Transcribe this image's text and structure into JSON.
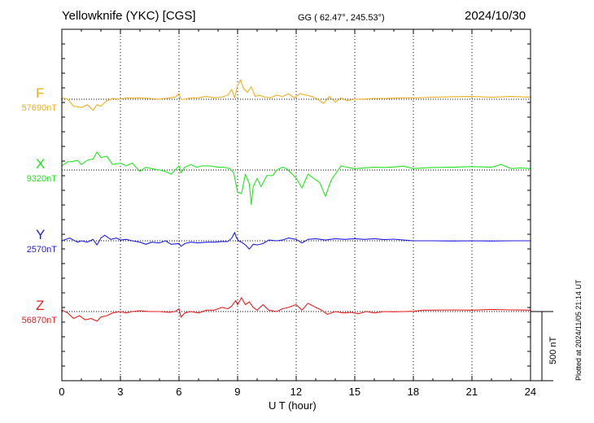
{
  "header": {
    "station": "Yellowknife (YKC)  [CGS]",
    "coords": "GG ( 62.47°, 245.53°)",
    "date": "2024/10/30"
  },
  "footer": {
    "plotted": "Plotted at 2024/11/05 21:14 UT"
  },
  "chart_data": {
    "type": "line",
    "xlabel": "U T (hour)",
    "xlim": [
      0,
      24
    ],
    "xticks": [
      0,
      3,
      6,
      9,
      12,
      15,
      18,
      21,
      24
    ],
    "grid": "dotted vertical every 3 hours; dotted baseline per channel",
    "scale_bar": {
      "label": "500 nT",
      "value_nT": 500
    },
    "series": [
      {
        "name": "F",
        "baseline_label": "57690nT",
        "baseline_nT": 57690,
        "color": "#f0ad1e",
        "x": [
          0,
          0.3,
          0.6,
          1,
          1.3,
          1.6,
          1.8,
          2,
          2.3,
          2.6,
          3,
          3.3,
          3.6,
          4,
          4.5,
          5,
          5.5,
          5.8,
          6,
          6.1,
          6.3,
          6.6,
          7,
          7.4,
          7.8,
          8.2,
          8.5,
          8.7,
          8.85,
          9,
          9.15,
          9.3,
          9.5,
          9.7,
          9.9,
          10.1,
          10.4,
          10.7,
          11,
          11.3,
          11.6,
          11.9,
          12.2,
          12.5,
          12.8,
          13.1,
          13.4,
          13.7,
          14,
          14.3,
          14.6,
          15,
          15.5,
          16,
          16.5,
          17,
          17.5,
          18,
          18.5,
          19,
          20,
          21,
          22,
          23,
          24
        ],
        "y": [
          57700,
          57690,
          57640,
          57630,
          57650,
          57610,
          57650,
          57640,
          57680,
          57695,
          57690,
          57700,
          57698,
          57700,
          57696,
          57690,
          57700,
          57705,
          57730,
          57690,
          57690,
          57700,
          57700,
          57710,
          57700,
          57705,
          57720,
          57760,
          57700,
          57790,
          57830,
          57770,
          57740,
          57780,
          57710,
          57720,
          57705,
          57700,
          57720,
          57710,
          57730,
          57700,
          57730,
          57720,
          57710,
          57690,
          57660,
          57710,
          57670,
          57700,
          57680,
          57690,
          57692,
          57696,
          57695,
          57698,
          57700,
          57700,
          57702,
          57705,
          57708,
          57710,
          57705,
          57710,
          57705
        ]
      },
      {
        "name": "X",
        "baseline_label": "9320nT",
        "baseline_nT": 9320,
        "color": "#22e622",
        "x": [
          0,
          0.3,
          0.5,
          0.8,
          1,
          1.3,
          1.6,
          1.8,
          2,
          2.3,
          2.6,
          3,
          3.3,
          3.6,
          4,
          4.3,
          4.6,
          5,
          5.3,
          5.6,
          6,
          6.1,
          6.3,
          6.6,
          6.9,
          7.2,
          7.6,
          8,
          8.3,
          8.6,
          8.8,
          9,
          9.2,
          9.4,
          9.6,
          9.7,
          9.8,
          10,
          10.2,
          10.5,
          10.8,
          11,
          11.3,
          11.5,
          11.8,
          12,
          12.3,
          12.6,
          12.9,
          13.2,
          13.5,
          13.8,
          14,
          14.3,
          14.6,
          15,
          15.5,
          16,
          16.5,
          17,
          17.5,
          18,
          18.5,
          19,
          20,
          21,
          22,
          22.5,
          23,
          23.5,
          24
        ],
        "y": [
          9350,
          9380,
          9380,
          9390,
          9360,
          9390,
          9400,
          9450,
          9410,
          9420,
          9360,
          9370,
          9350,
          9370,
          9310,
          9340,
          9330,
          9320,
          9310,
          9290,
          9350,
          9300,
          9340,
          9360,
          9340,
          9350,
          9350,
          9340,
          9340,
          9330,
          9300,
          9160,
          9150,
          9290,
          9220,
          9070,
          9200,
          9260,
          9200,
          9280,
          9280,
          9320,
          9340,
          9330,
          9290,
          9260,
          9190,
          9290,
          9260,
          9230,
          9130,
          9250,
          9290,
          9350,
          9340,
          9330,
          9335,
          9340,
          9338,
          9342,
          9348,
          9330,
          9335,
          9338,
          9340,
          9345,
          9340,
          9360,
          9330,
          9335,
          9330
        ]
      },
      {
        "name": "Y",
        "baseline_label": "2570nT",
        "baseline_nT": 2570,
        "color": "#1e1ee6",
        "x": [
          0,
          0.4,
          0.8,
          1,
          1.3,
          1.6,
          1.8,
          2,
          2.2,
          2.5,
          2.8,
          3,
          3.3,
          3.6,
          4,
          4.3,
          4.6,
          5,
          5.3,
          5.6,
          6,
          6.1,
          6.3,
          6.6,
          7,
          7.4,
          7.8,
          8.2,
          8.5,
          8.7,
          8.85,
          8.95,
          9.05,
          9.2,
          9.4,
          9.6,
          9.8,
          10,
          10.3,
          10.6,
          11,
          11.3,
          11.6,
          12,
          12.3,
          12.6,
          13,
          13.5,
          14,
          14.5,
          15,
          15.5,
          16,
          16.5,
          17,
          17.5,
          18,
          19,
          20,
          21,
          22,
          23,
          24
        ],
        "y": [
          2570,
          2590,
          2560,
          2570,
          2560,
          2580,
          2540,
          2590,
          2610,
          2580,
          2590,
          2575,
          2580,
          2570,
          2560,
          2545,
          2560,
          2555,
          2570,
          2545,
          2550,
          2530,
          2550,
          2560,
          2555,
          2560,
          2560,
          2565,
          2565,
          2590,
          2630,
          2590,
          2570,
          2560,
          2540,
          2510,
          2545,
          2540,
          2550,
          2575,
          2570,
          2575,
          2590,
          2580,
          2555,
          2580,
          2585,
          2575,
          2585,
          2580,
          2585,
          2580,
          2585,
          2578,
          2582,
          2575,
          2570,
          2570,
          2568,
          2570,
          2568,
          2570,
          2570
        ]
      },
      {
        "name": "Z",
        "baseline_label": "56870nT",
        "baseline_nT": 56870,
        "color": "#e61e1e",
        "x": [
          0,
          0.3,
          0.6,
          0.9,
          1.2,
          1.5,
          1.8,
          2,
          2.3,
          2.6,
          3,
          3.3,
          3.6,
          4,
          4.5,
          5,
          5.5,
          5.8,
          6,
          6.1,
          6.3,
          6.6,
          7,
          7.4,
          7.8,
          8.2,
          8.5,
          8.7,
          8.9,
          9,
          9.2,
          9.4,
          9.6,
          9.8,
          10,
          10.3,
          10.6,
          11,
          11.3,
          11.6,
          12,
          12.3,
          12.6,
          13,
          13.3,
          13.6,
          14,
          14.4,
          14.8,
          15.2,
          15.6,
          16,
          16.5,
          17,
          17.5,
          18,
          18.5,
          19,
          20,
          21,
          22,
          23,
          24
        ],
        "y": [
          56880,
          56860,
          56820,
          56840,
          56810,
          56820,
          56800,
          56830,
          56840,
          56860,
          56870,
          56860,
          56870,
          56875,
          56870,
          56870,
          56865,
          56870,
          56890,
          56830,
          56860,
          56870,
          56860,
          56880,
          56880,
          56900,
          56890,
          56910,
          56950,
          56920,
          56970,
          56920,
          56940,
          56900,
          56880,
          56920,
          56880,
          56870,
          56890,
          56900,
          56920,
          56880,
          56930,
          56900,
          56880,
          56850,
          56870,
          56860,
          56865,
          56855,
          56870,
          56860,
          56870,
          56868,
          56870,
          56872,
          56880,
          56880,
          56882,
          56880,
          56885,
          56882,
          56880
        ]
      }
    ]
  }
}
